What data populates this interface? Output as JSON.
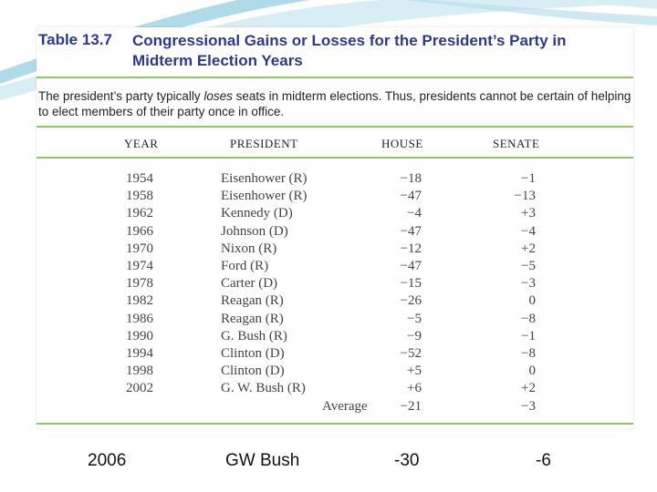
{
  "table": {
    "number": "Table 13.7",
    "title_line1": "Congressional Gains or Losses for the President’s Party in",
    "title_line2": "Midterm Election Years",
    "caption_before": "The president’s party typically ",
    "caption_emphasis": "loses",
    "caption_after": " seats in midterm elections. Thus, presidents cannot be certain of helping to elect members of their party once in office.",
    "headers": {
      "year": "YEAR",
      "president": "PRESIDENT",
      "house": "HOUSE",
      "senate": "SENATE"
    },
    "rows": [
      {
        "year": "1954",
        "president": "Eisenhower (R)",
        "house": "−18",
        "senate": "−1"
      },
      {
        "year": "1958",
        "president": "Eisenhower (R)",
        "house": "−47",
        "senate": "−13"
      },
      {
        "year": "1962",
        "president": "Kennedy (D)",
        "house": "−4",
        "senate": "+3"
      },
      {
        "year": "1966",
        "president": "Johnson (D)",
        "house": "−47",
        "senate": "−4"
      },
      {
        "year": "1970",
        "president": "Nixon (R)",
        "house": "−12",
        "senate": "+2"
      },
      {
        "year": "1974",
        "president": "Ford (R)",
        "house": "−47",
        "senate": "−5"
      },
      {
        "year": "1978",
        "president": "Carter (D)",
        "house": "−15",
        "senate": "−3"
      },
      {
        "year": "1982",
        "president": "Reagan (R)",
        "house": "−26",
        "senate": "0"
      },
      {
        "year": "1986",
        "president": "Reagan (R)",
        "house": "−5",
        "senate": "−8"
      },
      {
        "year": "1990",
        "president": "G. Bush (R)",
        "house": "−9",
        "senate": "−1"
      },
      {
        "year": "1994",
        "president": "Clinton (D)",
        "house": "−52",
        "senate": "−8"
      },
      {
        "year": "1998",
        "president": "Clinton (D)",
        "house": "+5",
        "senate": "0"
      },
      {
        "year": "2002",
        "president": "G. W. Bush (R)",
        "house": "+6",
        "senate": "+2"
      }
    ],
    "average": {
      "label": "Average",
      "house": "−21",
      "senate": "−3"
    }
  },
  "extra_row": {
    "year": "2006",
    "president": "GW Bush",
    "house": "-30",
    "senate": "-6"
  },
  "colors": {
    "title": "#2d3a8c",
    "rule": "#8cc56a",
    "swoosh": "#a9d6e6"
  }
}
